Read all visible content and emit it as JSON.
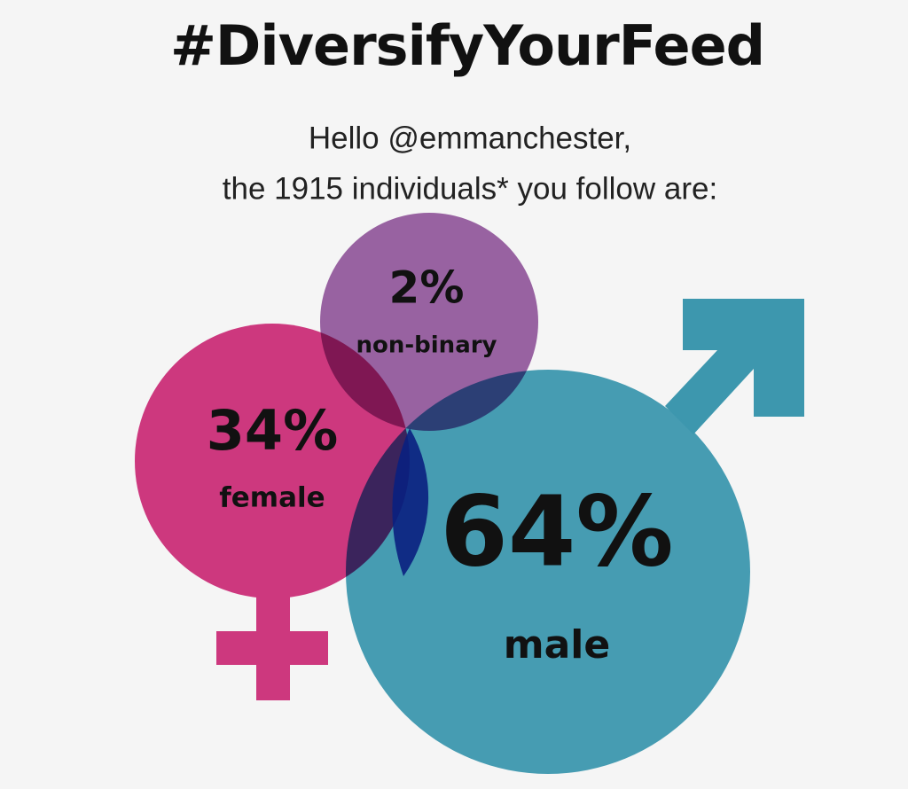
{
  "title": "#DiversifyYourFeed",
  "greeting": "Hello @emmanchester,",
  "subtitle": "the 1915 individuals* you follow are:",
  "groups": [
    {
      "value": "34%",
      "label": "female"
    },
    {
      "value": "2%",
      "label": "non-binary"
    },
    {
      "value": "64%",
      "label": "male"
    }
  ]
}
